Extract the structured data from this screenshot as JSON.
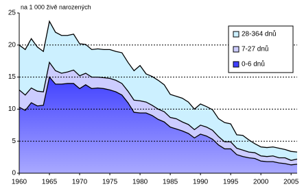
{
  "chart_data": {
    "type": "stacked-area",
    "ylabel": "na 1 000 živě narozených",
    "x": [
      1960,
      1961,
      1962,
      1963,
      1964,
      1965,
      1966,
      1967,
      1968,
      1969,
      1970,
      1971,
      1972,
      1973,
      1974,
      1975,
      1976,
      1977,
      1978,
      1979,
      1980,
      1981,
      1982,
      1983,
      1984,
      1985,
      1986,
      1987,
      1988,
      1989,
      1990,
      1991,
      1992,
      1993,
      1994,
      1995,
      1996,
      1997,
      1998,
      1999,
      2000,
      2001,
      2002,
      2003,
      2004,
      2005,
      2006
    ],
    "series": [
      {
        "name": "0-6 dnů",
        "color": "#4040ff",
        "values": [
          10.3,
          9.8,
          11.0,
          10.5,
          10.6,
          15.0,
          13.9,
          13.9,
          14.0,
          14.0,
          13.2,
          13.8,
          13.2,
          13.3,
          13.2,
          13.0,
          12.7,
          12.2,
          11.0,
          9.5,
          9.4,
          9.4,
          9.0,
          8.4,
          8.0,
          7.2,
          6.9,
          6.6,
          6.2,
          5.5,
          6.1,
          5.8,
          5.3,
          4.4,
          3.8,
          3.8,
          2.9,
          2.6,
          2.4,
          2.3,
          1.9,
          1.8,
          1.8,
          1.6,
          1.5,
          1.3,
          1.4
        ]
      },
      {
        "name": "7-27 dnů",
        "color": "#ccccff",
        "values": [
          2.7,
          2.4,
          2.3,
          2.3,
          2.1,
          2.3,
          2.1,
          1.7,
          1.8,
          2.1,
          2.0,
          1.8,
          1.8,
          1.7,
          1.7,
          1.8,
          1.8,
          1.8,
          1.8,
          1.9,
          1.9,
          1.7,
          1.6,
          1.6,
          1.6,
          1.5,
          1.6,
          1.4,
          1.4,
          1.3,
          1.4,
          1.4,
          1.4,
          1.3,
          1.1,
          1.1,
          1.0,
          1.0,
          0.9,
          0.9,
          0.8,
          0.8,
          0.9,
          0.8,
          0.9,
          0.7,
          0.8
        ]
      },
      {
        "name": "28-364 dnů",
        "color": "#ccf0ff",
        "values": [
          7.0,
          7.1,
          7.7,
          6.9,
          6.3,
          6.4,
          6.0,
          5.9,
          5.7,
          5.6,
          5.0,
          4.5,
          4.3,
          4.4,
          4.4,
          4.5,
          4.5,
          4.8,
          4.5,
          4.6,
          5.5,
          4.4,
          4.5,
          4.5,
          4.2,
          3.6,
          3.5,
          3.7,
          3.5,
          3.2,
          3.3,
          3.2,
          3.2,
          2.8,
          3.0,
          2.8,
          2.1,
          2.3,
          1.9,
          1.4,
          1.4,
          1.4,
          1.4,
          1.5,
          1.3,
          1.4,
          1.1
        ]
      }
    ],
    "xlim": [
      1960,
      2006
    ],
    "xticks": [
      1960,
      1965,
      1970,
      1975,
      1980,
      1985,
      1990,
      1995,
      2000,
      2005
    ],
    "ylim": [
      0,
      25
    ],
    "yticks": [
      0,
      5,
      10,
      15,
      20,
      25
    ],
    "grid": true,
    "legend": "upper right"
  }
}
